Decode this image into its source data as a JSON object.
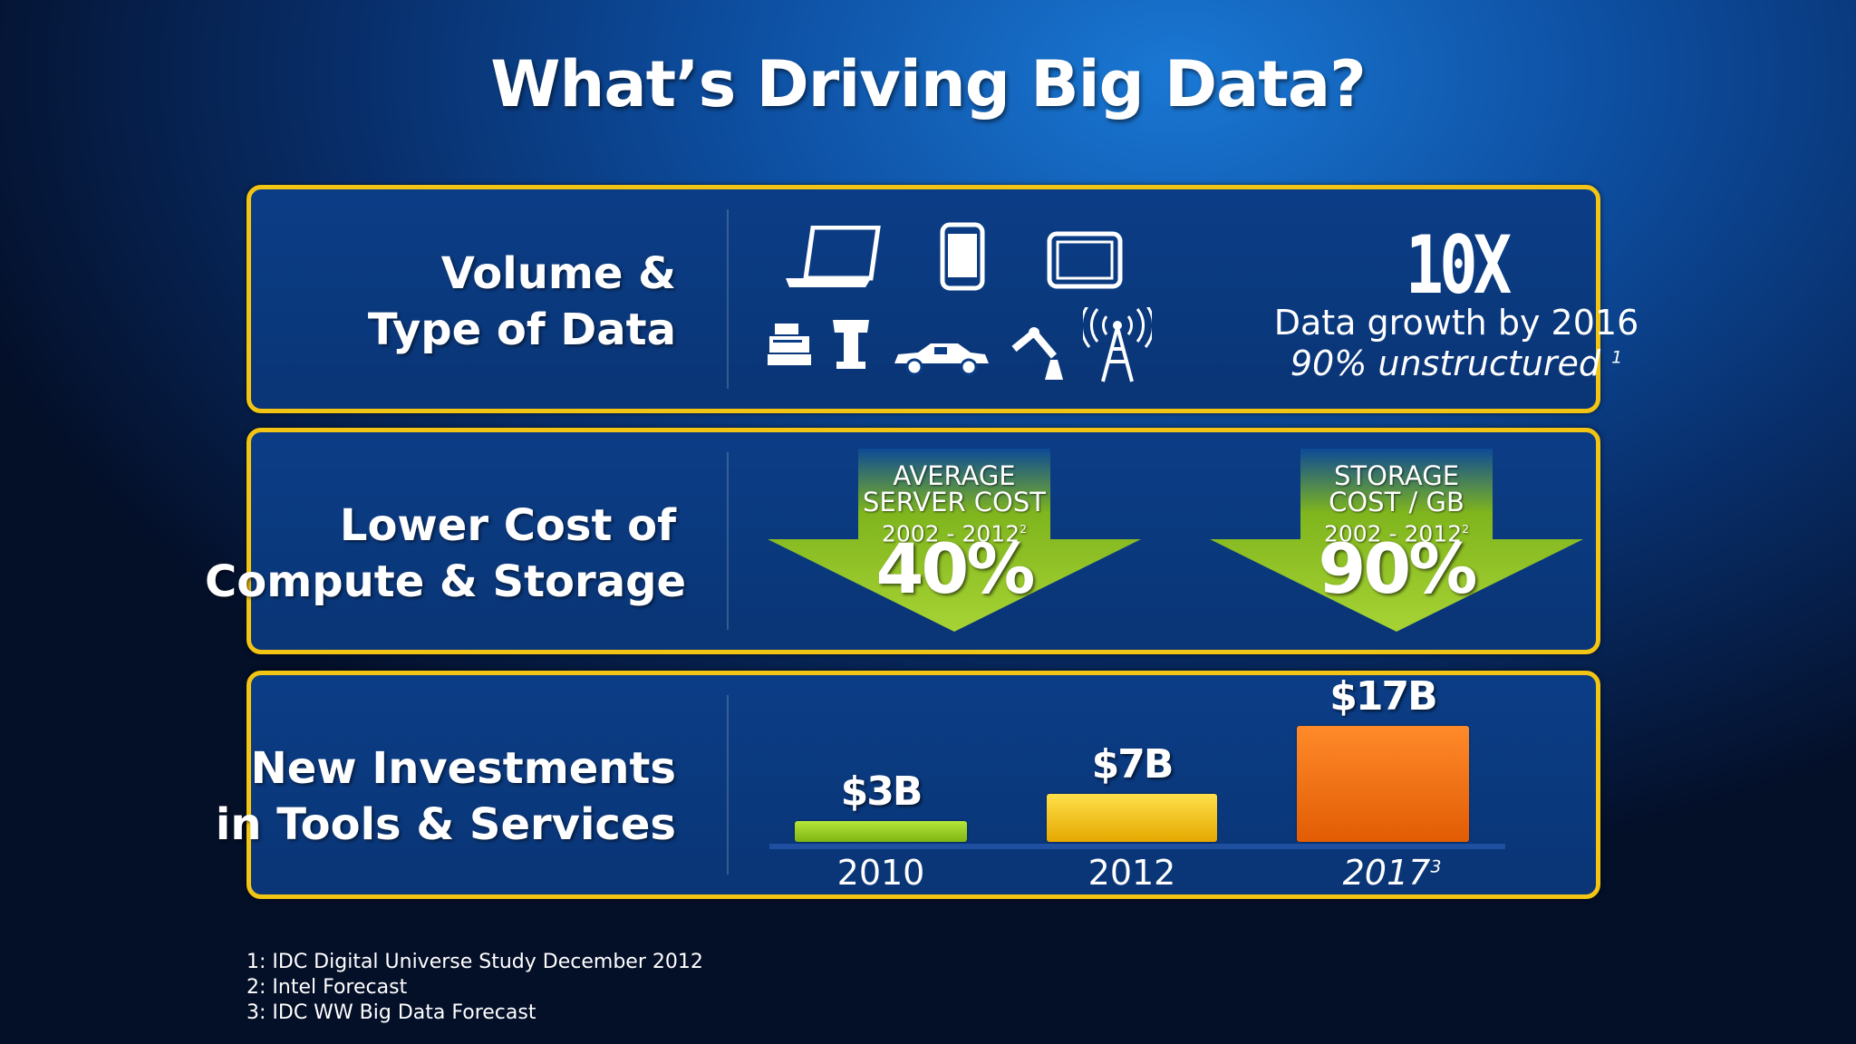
{
  "title": "What’s Driving Big Data?",
  "colors": {
    "border": "#f2c413",
    "bar_2010": "#9ad21c",
    "bar_2012": "#f6c404",
    "bar_2017": "#f26d0a",
    "arrow": "#8fc41f"
  },
  "panel_volume": {
    "label_line1": "Volume &",
    "label_line2": "Type of Data",
    "icons": [
      "laptop-icon",
      "smartphone-icon",
      "tablet-icon",
      "cash-register-icon",
      "kiosk-icon",
      "car-icon",
      "robot-arm-icon",
      "cell-tower-icon"
    ],
    "stat": "10X",
    "growth": "Data growth by 2016",
    "unstructured": "90% unstructured",
    "unstructured_note": "1"
  },
  "panel_cost": {
    "label_line1": "Lower Cost of",
    "label_line2": "Compute & Storage",
    "arrows": [
      {
        "line1": "AVERAGE",
        "line2": "SERVER COST",
        "years": "2002 - 2012",
        "note": "2",
        "value": "40%"
      },
      {
        "line1": "STORAGE",
        "line2": "COST / GB",
        "years": "2002 - 2012",
        "note": "2",
        "value": "90%"
      }
    ]
  },
  "panel_invest": {
    "label_line1": "New Investments",
    "label_line2": "in Tools & Services"
  },
  "chart_data": {
    "type": "bar",
    "categories": [
      "2010",
      "2012",
      "2017"
    ],
    "category_notes": [
      "",
      "",
      "3"
    ],
    "values": [
      3,
      7,
      17
    ],
    "value_labels": [
      "$3B",
      "$7B",
      "$17B"
    ],
    "ylim": [
      0,
      17
    ]
  },
  "footnotes": [
    "1: IDC Digital Universe Study December 2012",
    "2: Intel Forecast",
    "3:  IDC WW Big Data Forecast"
  ]
}
